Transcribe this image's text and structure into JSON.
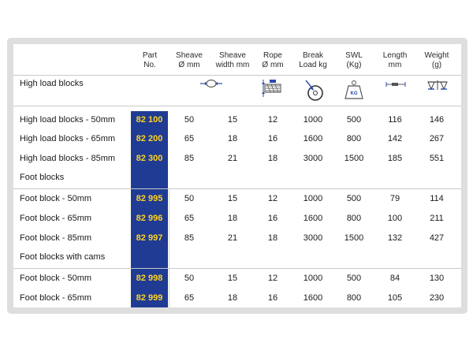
{
  "columns": [
    {
      "key": "part",
      "line1": "Part",
      "line2": "No."
    },
    {
      "key": "sheave",
      "line1": "Sheave",
      "line2": "Ø mm"
    },
    {
      "key": "sheave_width",
      "line1": "Sheave",
      "line2": "width mm"
    },
    {
      "key": "rope",
      "line1": "Rope",
      "line2": "Ø mm"
    },
    {
      "key": "break_load",
      "line1": "Break",
      "line2": "Load kg"
    },
    {
      "key": "swl",
      "line1": "SWL",
      "line2": "(Kg)"
    },
    {
      "key": "length",
      "line1": "Length",
      "line2": "mm"
    },
    {
      "key": "weight",
      "line1": "Weight",
      "line2": "(g)"
    }
  ],
  "icons": [
    "sheave-diameter-icon",
    "rope-diameter-icon",
    "break-load-icon",
    "swl-weight-icon",
    "length-icon",
    "weight-scale-icon"
  ],
  "icon_labels": {
    "swl": "KG"
  },
  "sections": [
    {
      "title": "High load blocks",
      "rows": [
        {
          "name": "High load blocks - 50mm",
          "part": "82 100",
          "sheave": "50",
          "sheave_width": "15",
          "rope": "12",
          "break_load": "1000",
          "swl": "500",
          "length": "116",
          "weight": "146"
        },
        {
          "name": "High load blocks - 65mm",
          "part": "82 200",
          "sheave": "65",
          "sheave_width": "18",
          "rope": "16",
          "break_load": "1600",
          "swl": "800",
          "length": "142",
          "weight": "267"
        },
        {
          "name": "High load blocks - 85mm",
          "part": "82 300",
          "sheave": "85",
          "sheave_width": "21",
          "rope": "18",
          "break_load": "3000",
          "swl": "1500",
          "length": "185",
          "weight": "551"
        }
      ]
    },
    {
      "title": "Foot blocks",
      "rows": [
        {
          "name": "Foot block - 50mm",
          "part": "82 995",
          "sheave": "50",
          "sheave_width": "15",
          "rope": "12",
          "break_load": "1000",
          "swl": "500",
          "length": "79",
          "weight": "114"
        },
        {
          "name": "Foot block - 65mm",
          "part": "82 996",
          "sheave": "65",
          "sheave_width": "18",
          "rope": "16",
          "break_load": "1600",
          "swl": "800",
          "length": "100",
          "weight": "211"
        },
        {
          "name": "Foot block - 85mm",
          "part": "82 997",
          "sheave": "85",
          "sheave_width": "21",
          "rope": "18",
          "break_load": "3000",
          "swl": "1500",
          "length": "132",
          "weight": "427"
        }
      ]
    },
    {
      "title": "Foot blocks with cams",
      "rows": [
        {
          "name": "Foot block - 50mm",
          "part": "82 998",
          "sheave": "50",
          "sheave_width": "15",
          "rope": "12",
          "break_load": "1000",
          "swl": "500",
          "length": "84",
          "weight": "130"
        },
        {
          "name": "Foot block - 65mm",
          "part": "82 999",
          "sheave": "65",
          "sheave_width": "18",
          "rope": "16",
          "break_load": "1600",
          "swl": "800",
          "length": "105",
          "weight": "230"
        }
      ]
    }
  ],
  "colors": {
    "part_band": "#1f3b93",
    "part_text": "#ffd320",
    "icon_blue": "#2b4aa8"
  }
}
